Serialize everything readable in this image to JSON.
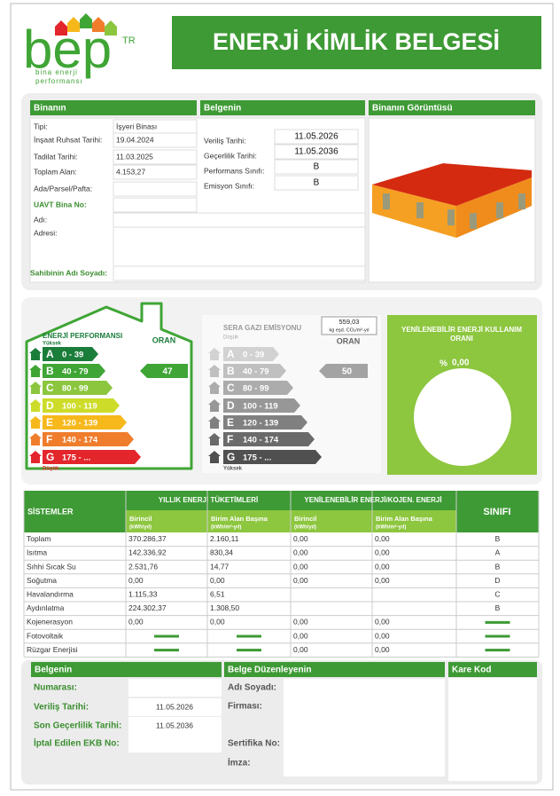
{
  "header": {
    "logo": "bep",
    "logo_suffix": "TR",
    "logo_tagline_1": "bina enerji",
    "logo_tagline_2": "performansı",
    "title": "ENERJİ KİMLİK BELGESİ"
  },
  "building": {
    "title": "Binanın",
    "fields": [
      {
        "label": "Tipi:",
        "value": "İşyeri Binası"
      },
      {
        "label": "İnşaat Ruhsat Tarihi:",
        "value": "19.04.2024"
      },
      {
        "label": "Tadilat Tarihi:",
        "value": "11.03.2025"
      },
      {
        "label": "Toplam Alan:",
        "value": "4.153,27"
      },
      {
        "label": "Ada/Parsel/Pafta:"
      },
      {
        "label": "UAVT Bina No:"
      },
      {
        "label": "Adı:"
      },
      {
        "label": "Adresi:"
      }
    ],
    "owner_label": "Sahibinin Adı Soyadı:"
  },
  "certificate": {
    "title": "Belgenin",
    "fields": [
      {
        "label": "Veriliş Tarihi:",
        "value": "11.05.2026"
      },
      {
        "label": "Geçerlilik Tarihi:",
        "value": "11.05.2036"
      },
      {
        "label": "Performans Sınıfı:",
        "value": "B"
      },
      {
        "label": "Emisyon Sınıfı:",
        "value": "B"
      }
    ]
  },
  "image": {
    "title": "Binanın Görüntüsü"
  },
  "energy_performance": {
    "title": "ENERJİ PERFORMANSI",
    "high": "Yüksek",
    "low": "Düşük",
    "ratio_label": "ORAN",
    "ratio": "47",
    "ratio_color": "#3fa535",
    "classes": [
      {
        "letter": "A",
        "range": "0 - 39",
        "color": "#1b7d3a"
      },
      {
        "letter": "B",
        "range": "40 - 79",
        "color": "#3fa535"
      },
      {
        "letter": "C",
        "range": "80 - 99",
        "color": "#8cc63f"
      },
      {
        "letter": "D",
        "range": "100 - 119",
        "color": "#cddc29"
      },
      {
        "letter": "E",
        "range": "120 - 139",
        "color": "#f6b81b"
      },
      {
        "letter": "F",
        "range": "140 - 174",
        "color": "#ef7d2c"
      },
      {
        "letter": "G",
        "range": "175 - ...",
        "color": "#e3262b"
      }
    ]
  },
  "ghg_emission": {
    "title": "SERA GAZI EMİSYONU",
    "low": "Düşük",
    "high": "Yüksek",
    "value": "559,03",
    "unit": "kg eşd. CO₂/m²-yıl",
    "ratio_label": "ORAN",
    "ratio": "50",
    "ratio_color": "#a3a3a3",
    "classes": [
      {
        "letter": "A",
        "range": "0 - 39",
        "color": "#d2d2d2"
      },
      {
        "letter": "B",
        "range": "40 - 79",
        "color": "#c0c0c0"
      },
      {
        "letter": "C",
        "range": "80 - 99",
        "color": "#acacac"
      },
      {
        "letter": "D",
        "range": "100 - 119",
        "color": "#979797"
      },
      {
        "letter": "E",
        "range": "120 - 139",
        "color": "#808080"
      },
      {
        "letter": "F",
        "range": "140 - 174",
        "color": "#6a6a6a"
      },
      {
        "letter": "G",
        "range": "175 - ...",
        "color": "#505050"
      }
    ]
  },
  "renewable": {
    "title_lines": [
      "YENİLENEBİLİR ENERJİ KULLANIM",
      "ORANI"
    ],
    "percent_sign": "%",
    "value": "0,00"
  },
  "systems": {
    "header": "SİSTEMLER",
    "annual_group": "YILLIK ENERJİ TÜKETİMLERİ",
    "renewable_group": "YENİLENEBİLİR ENERJİ/KOJEN. ENERJİ",
    "class_header": "SINIFI",
    "columns": [
      {
        "label": "Birincil",
        "unit": "(kWh/yıl)"
      },
      {
        "label": "Birim Alan Başına",
        "unit": "(kWh/m²-yıl)"
      },
      {
        "label": "Birincil",
        "unit": "(kWh/yıl)"
      },
      {
        "label": "Birim Alan Başına",
        "unit": "(kWh/m²-yıl)"
      }
    ],
    "rows": [
      {
        "name": "Toplam",
        "cells": [
          "370.286,37",
          "2.160,11",
          "0,00",
          "0,00",
          "B"
        ]
      },
      {
        "name": "Isıtma",
        "cells": [
          "142.336,92",
          "830,34",
          "0,00",
          "0,00",
          "A"
        ]
      },
      {
        "name": "Sıhhi Sıcak Su",
        "cells": [
          "2.531,76",
          "14,77",
          "0,00",
          "0,00",
          "B"
        ]
      },
      {
        "name": "Soğutma",
        "cells": [
          "0,00",
          "0,00",
          "0,00",
          "0,00",
          "D"
        ]
      },
      {
        "name": "Havalandırma",
        "cells": [
          "1.115,33",
          "6,51",
          null,
          null,
          "C"
        ]
      },
      {
        "name": "Aydınlatma",
        "cells": [
          "224.302,37",
          "1.308,50",
          null,
          null,
          "B"
        ]
      },
      {
        "name": "Kojenerasyon",
        "cells": [
          "0,00",
          "0,00",
          "0,00",
          "0,00",
          null
        ]
      },
      {
        "name": "Fotovoltaik",
        "cells": [
          null,
          null,
          "0,00",
          "0,00",
          null
        ]
      },
      {
        "name": "Rüzgar Enerjisi",
        "cells": [
          null,
          null,
          "0,00",
          "0,00",
          null
        ]
      }
    ]
  },
  "issue": {
    "title": "Belgenin",
    "fields": [
      {
        "label": "Numarası:"
      },
      {
        "label": "Veriliş Tarihi:",
        "value": "11.05.2026"
      },
      {
        "label": "Son Geçerlilik Tarihi:",
        "value": "11.05.2036"
      },
      {
        "label": "İptal Edilen EKB No:"
      }
    ]
  },
  "issuer": {
    "title": "Belge Düzenleyenin",
    "fields": [
      "Adı Soyadı:",
      "Firması:",
      "Sertifika No:",
      "İmza:"
    ]
  },
  "qr": {
    "title": "Kare Kod"
  }
}
